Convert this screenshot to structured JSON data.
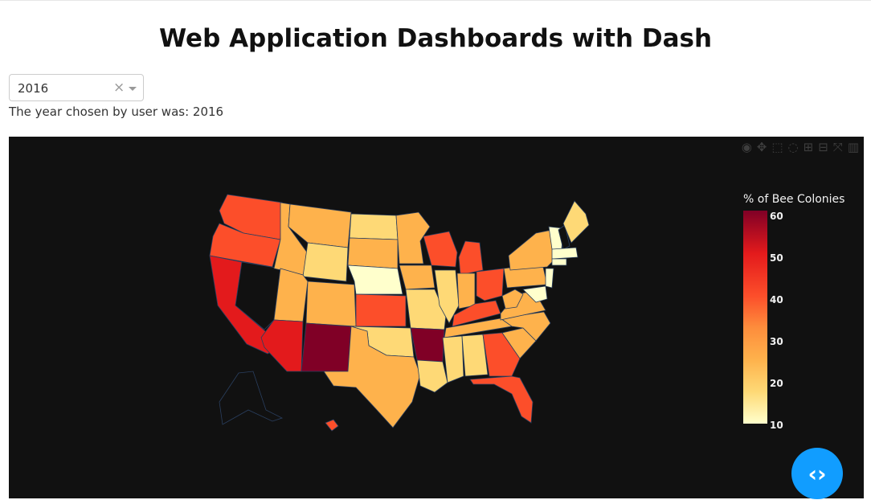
{
  "page": {
    "title": "Web Application Dashboards with Dash"
  },
  "dropdown": {
    "value": "2016",
    "clear_glyph": "×"
  },
  "output_text": "The year chosen by user was: 2016",
  "map": {
    "colorbar_title": "% of Bee Colonies",
    "ticks": [
      "60",
      "50",
      "40",
      "30",
      "20",
      "10"
    ],
    "colorscale": [
      "#ffffcc",
      "#fed976",
      "#feb24c",
      "#fd8d3c",
      "#fc4e2a",
      "#e31a1c",
      "#800026"
    ],
    "background": "#111111"
  },
  "modebar": {
    "icons": [
      "camera-icon",
      "pan-icon",
      "box-select-icon",
      "lasso-icon",
      "zoom-in-icon",
      "zoom-out-icon",
      "autoscale-icon",
      "plotly-logo-icon"
    ]
  },
  "fab": {
    "icon": "code-icon"
  }
}
